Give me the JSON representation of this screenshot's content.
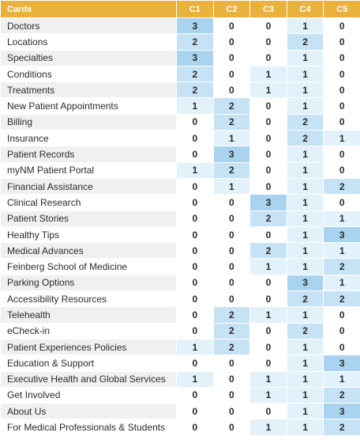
{
  "header": {
    "name": "Cards",
    "columns": [
      "C1",
      "C2",
      "C3",
      "C4",
      "C5"
    ]
  },
  "rows": [
    {
      "label": "Doctors",
      "values": [
        3,
        0,
        0,
        1,
        0
      ]
    },
    {
      "label": "Locations",
      "values": [
        2,
        0,
        0,
        2,
        0
      ]
    },
    {
      "label": "Specialties",
      "values": [
        3,
        0,
        0,
        1,
        0
      ]
    },
    {
      "label": "Conditions",
      "values": [
        2,
        0,
        1,
        1,
        0
      ]
    },
    {
      "label": "Treatments",
      "values": [
        2,
        0,
        1,
        1,
        0
      ]
    },
    {
      "label": "New Patient Appointments",
      "values": [
        1,
        2,
        0,
        1,
        0
      ]
    },
    {
      "label": "Billing",
      "values": [
        0,
        2,
        0,
        2,
        0
      ]
    },
    {
      "label": "Insurance",
      "values": [
        0,
        1,
        0,
        2,
        1
      ]
    },
    {
      "label": "Patient Records",
      "values": [
        0,
        3,
        0,
        1,
        0
      ]
    },
    {
      "label": "myNM Patient Portal",
      "values": [
        1,
        2,
        0,
        1,
        0
      ]
    },
    {
      "label": "Financial Assistance",
      "values": [
        0,
        1,
        0,
        1,
        2
      ]
    },
    {
      "label": "Clinical Research",
      "values": [
        0,
        0,
        3,
        1,
        0
      ]
    },
    {
      "label": "Patient Stories",
      "values": [
        0,
        0,
        2,
        1,
        1
      ]
    },
    {
      "label": "Healthy Tips",
      "values": [
        0,
        0,
        0,
        1,
        3
      ]
    },
    {
      "label": "Medical Advances",
      "values": [
        0,
        0,
        2,
        1,
        1
      ]
    },
    {
      "label": "Feinberg School of Medicine",
      "values": [
        0,
        0,
        1,
        1,
        2
      ]
    },
    {
      "label": "Parking Options",
      "values": [
        0,
        0,
        0,
        3,
        1
      ]
    },
    {
      "label": "Accessibility Resources",
      "values": [
        0,
        0,
        0,
        2,
        2
      ]
    },
    {
      "label": "Telehealth",
      "values": [
        0,
        2,
        1,
        1,
        0
      ]
    },
    {
      "label": "eCheck-in",
      "values": [
        0,
        2,
        0,
        2,
        0
      ]
    },
    {
      "label": "Patient Experiences Policies",
      "values": [
        1,
        2,
        0,
        1,
        0
      ]
    },
    {
      "label": "Education & Support",
      "values": [
        0,
        0,
        0,
        1,
        3
      ]
    },
    {
      "label": "Executive Health and Global Services",
      "values": [
        1,
        0,
        1,
        1,
        1
      ]
    },
    {
      "label": "Get Involved",
      "values": [
        0,
        0,
        1,
        1,
        2
      ]
    },
    {
      "label": "About Us",
      "values": [
        0,
        0,
        0,
        1,
        3
      ]
    },
    {
      "label": "For Medical Professionals & Students",
      "values": [
        0,
        0,
        1,
        1,
        2
      ]
    }
  ],
  "colors": {
    "header_bg": "#e8b23c",
    "header_text": "#ffffff",
    "stripe": "#f0f0f0",
    "level_0": "#ffffff",
    "level_1": "#e3f1fb",
    "level_2": "#c6e2f5",
    "level_3": "#a9d3ee"
  }
}
